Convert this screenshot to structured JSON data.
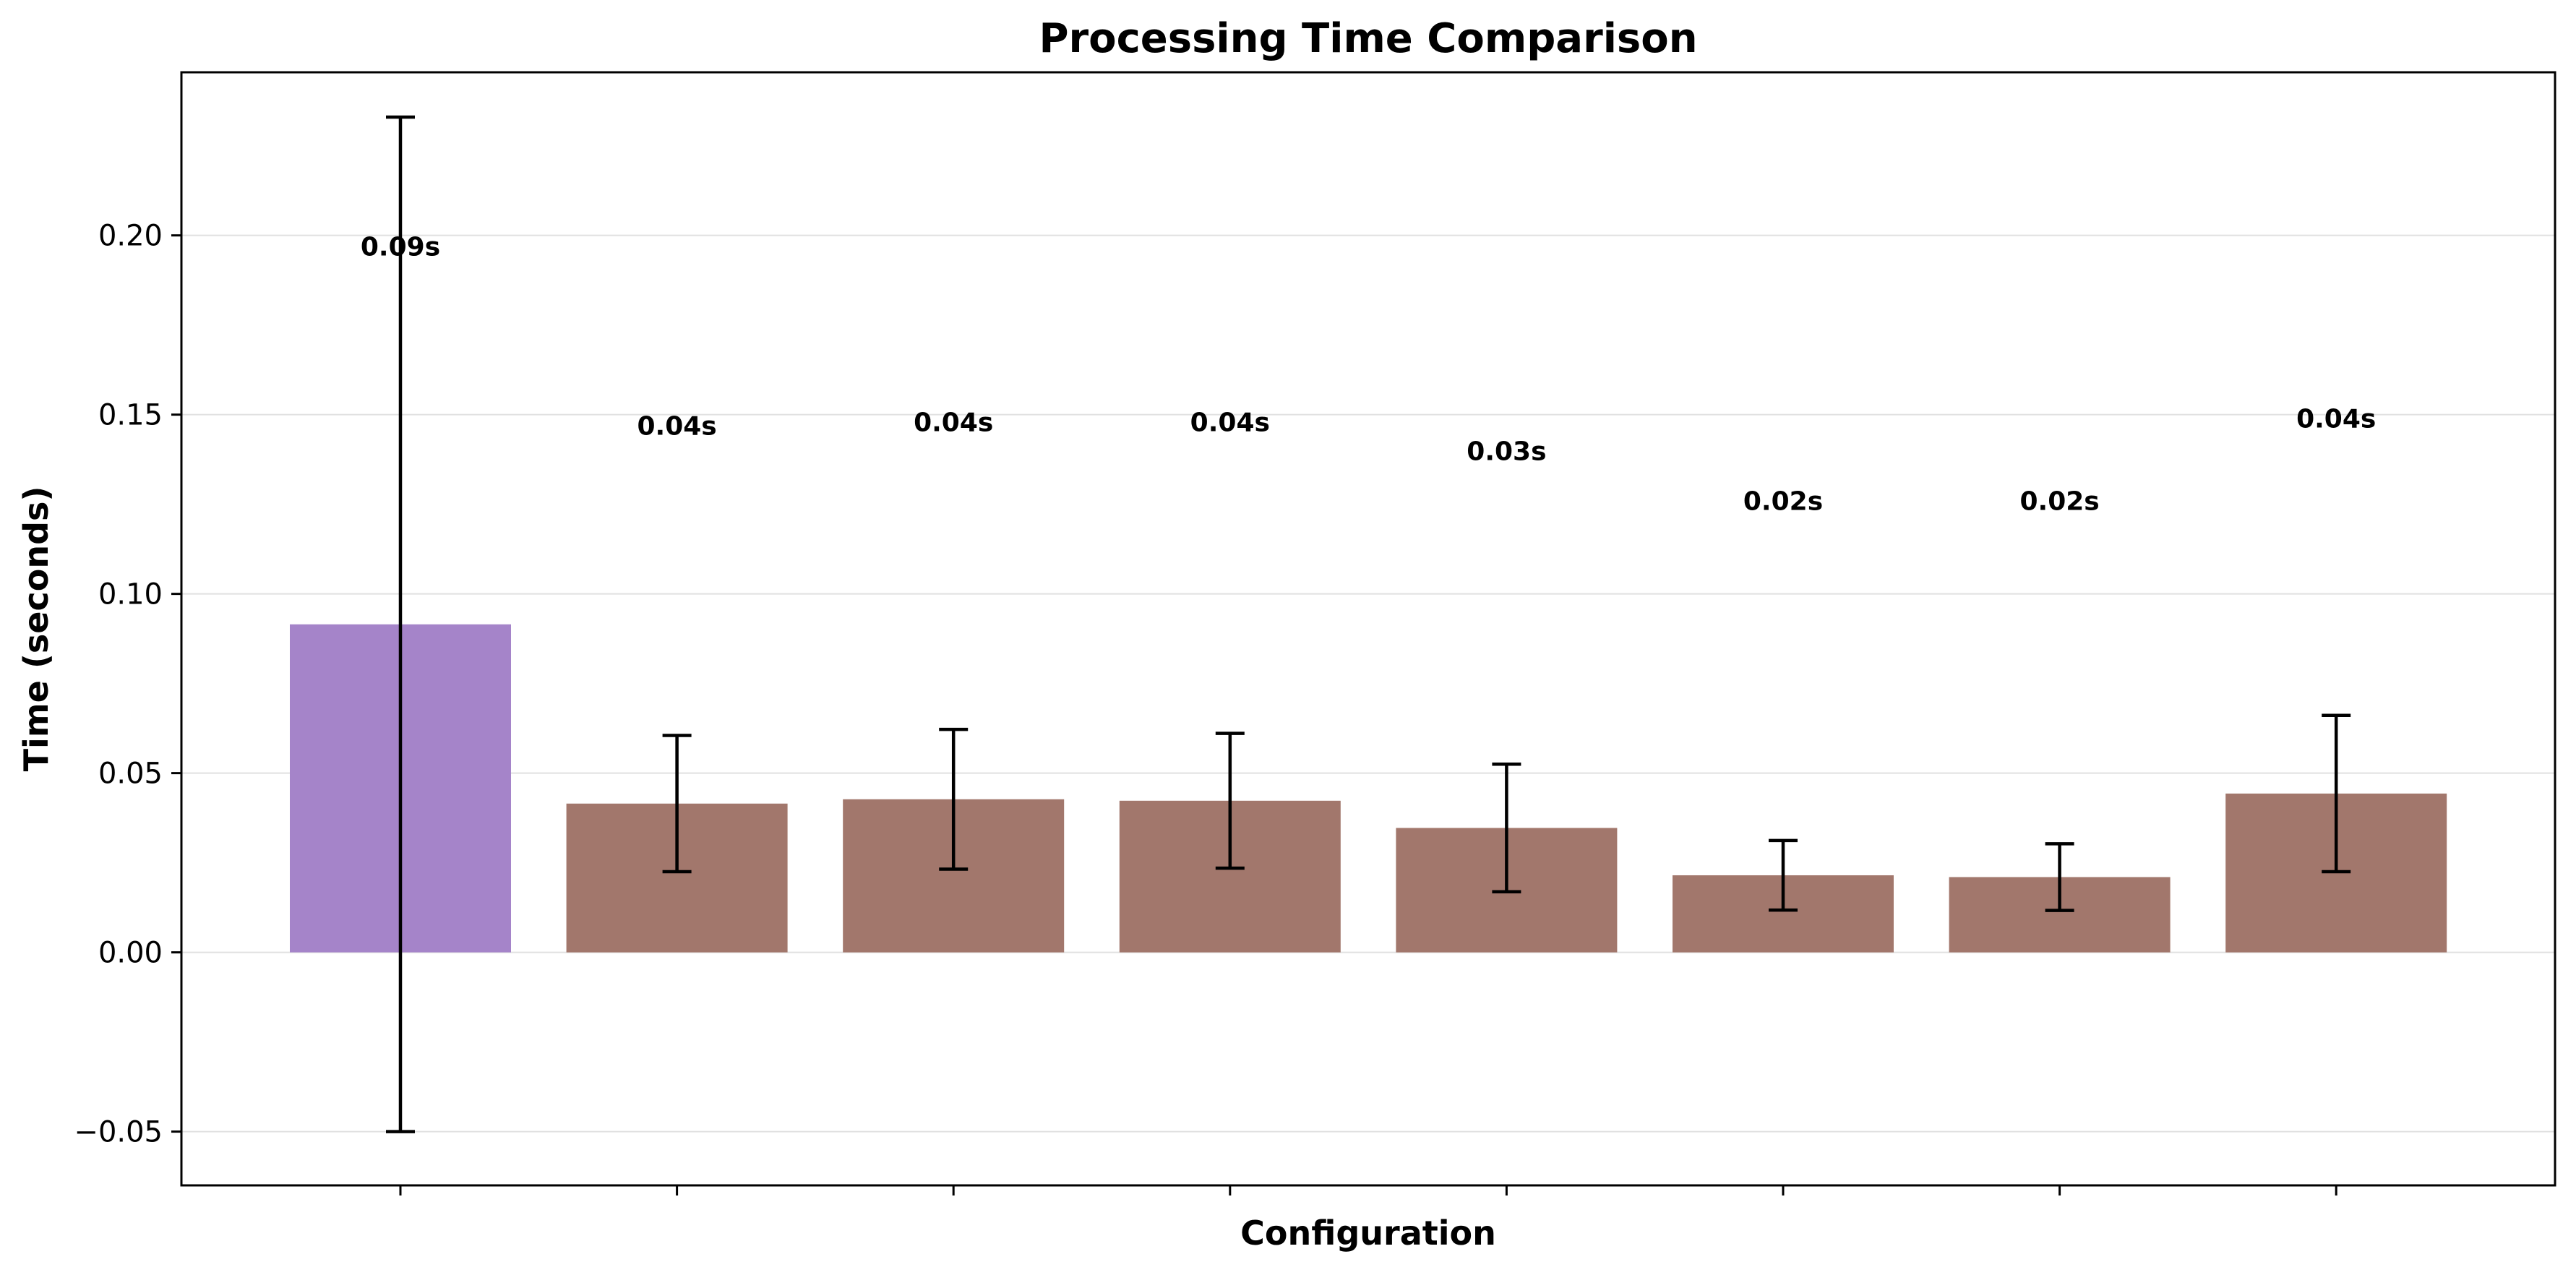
{
  "chart_data": {
    "type": "bar",
    "title": "Processing Time Comparison",
    "xlabel": "Configuration",
    "ylabel": "Time (seconds)",
    "ylim": [
      -0.065,
      0.2455
    ],
    "yticks": [
      -0.05,
      0.0,
      0.05,
      0.1,
      0.15,
      0.2
    ],
    "ytick_labels": [
      "−0.05",
      "0.00",
      "0.05",
      "0.10",
      "0.15",
      "0.20"
    ],
    "grid": "y",
    "categories": [
      "",
      "",
      "",
      "",
      "",
      "",
      "",
      ""
    ],
    "values": [
      0.0915,
      0.0415,
      0.0427,
      0.0423,
      0.0347,
      0.0215,
      0.021,
      0.0443
    ],
    "errors": [
      0.1415,
      0.019,
      0.0195,
      0.0188,
      0.0178,
      0.0097,
      0.0093,
      0.0218
    ],
    "label_y": [
      0.197,
      0.147,
      0.148,
      0.148,
      0.14,
      0.126,
      0.126,
      0.149
    ],
    "data_labels": [
      "0.09s",
      "0.04s",
      "0.04s",
      "0.04s",
      "0.03s",
      "0.02s",
      "0.02s",
      "0.04s"
    ],
    "colors": [
      "#a584c9",
      "#a2776c",
      "#a2776c",
      "#a2776c",
      "#a2776c",
      "#a2776c",
      "#a2776c",
      "#a2776c"
    ]
  }
}
